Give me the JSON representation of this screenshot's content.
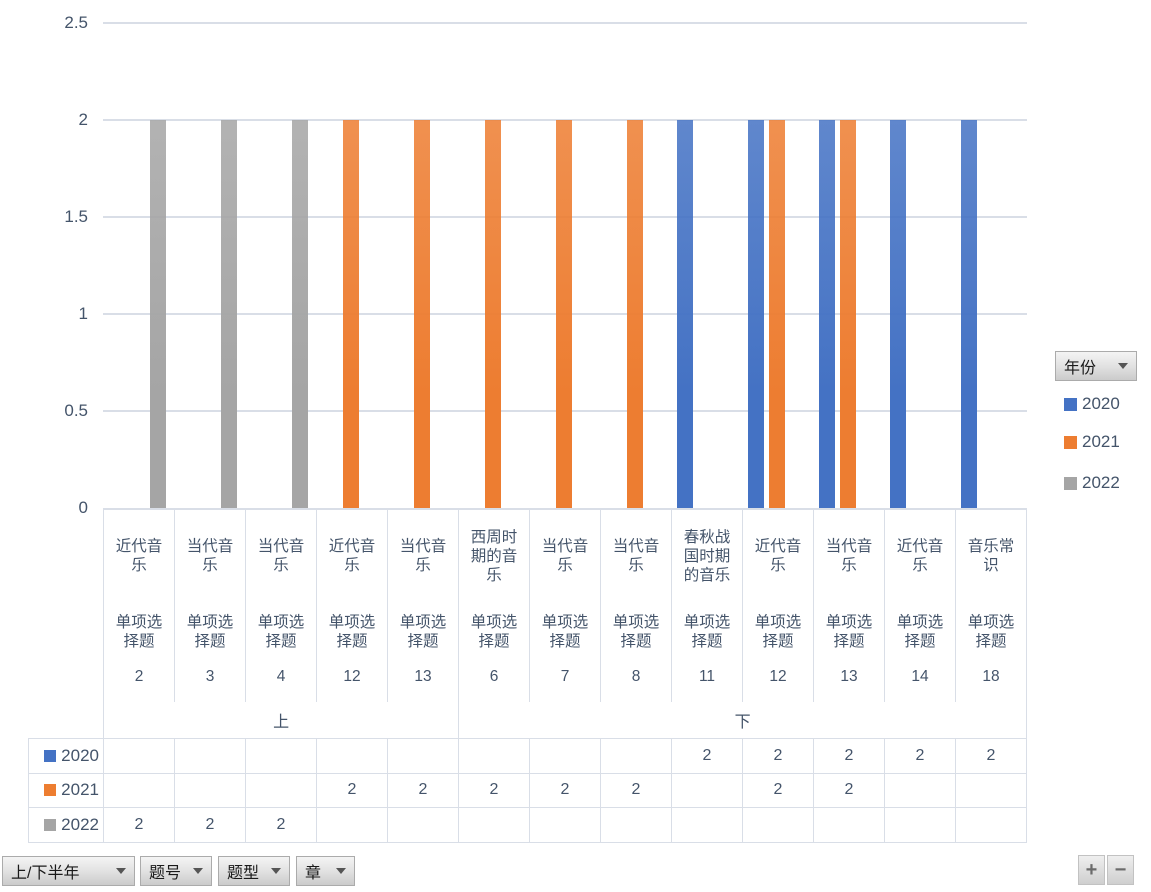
{
  "chart_data": {
    "type": "bar",
    "title": "",
    "xlabel": "",
    "ylabel": "",
    "ylim": [
      0,
      2.5
    ],
    "y_ticks": [
      2.5,
      2,
      1.5,
      1,
      0.5,
      0
    ],
    "grid": true,
    "legend_position": "right",
    "categories": [
      {
        "chapter": "近代音乐",
        "question_type": "单项选择题",
        "question_no": "2"
      },
      {
        "chapter": "当代音乐",
        "question_type": "单项选择题",
        "question_no": "3"
      },
      {
        "chapter": "当代音乐",
        "question_type": "单项选择题",
        "question_no": "4"
      },
      {
        "chapter": "近代音乐",
        "question_type": "单项选择题",
        "question_no": "12"
      },
      {
        "chapter": "当代音乐",
        "question_type": "单项选择题",
        "question_no": "13"
      },
      {
        "chapter": "西周时期的音乐",
        "question_type": "单项选择题",
        "question_no": "6"
      },
      {
        "chapter": "当代音乐",
        "question_type": "单项选择题",
        "question_no": "7"
      },
      {
        "chapter": "当代音乐",
        "question_type": "单项选择题",
        "question_no": "8"
      },
      {
        "chapter": "春秋战国时期的音乐",
        "question_type": "单项选择题",
        "question_no": "11"
      },
      {
        "chapter": "近代音乐",
        "question_type": "单项选择题",
        "question_no": "12"
      },
      {
        "chapter": "当代音乐",
        "question_type": "单项选择题",
        "question_no": "13"
      },
      {
        "chapter": "近代音乐",
        "question_type": "单项选择题",
        "question_no": "14"
      },
      {
        "chapter": "音乐常识",
        "question_type": "单项选择题",
        "question_no": "18"
      }
    ],
    "groups": [
      {
        "label": "上",
        "span": 5
      },
      {
        "label": "下",
        "span": 8
      }
    ],
    "series": [
      {
        "name": "2020",
        "color": "#4472C4",
        "values": [
          null,
          null,
          null,
          null,
          null,
          null,
          null,
          null,
          2,
          2,
          2,
          2,
          2
        ]
      },
      {
        "name": "2021",
        "color": "#ED7D31",
        "values": [
          null,
          null,
          null,
          2,
          2,
          2,
          2,
          2,
          null,
          2,
          2,
          null,
          null
        ]
      },
      {
        "name": "2022",
        "color": "#A5A5A5",
        "values": [
          2,
          2,
          2,
          null,
          null,
          null,
          null,
          null,
          null,
          null,
          null,
          null,
          null
        ]
      }
    ]
  },
  "legend": {
    "field_label": "年份",
    "items": [
      {
        "label": "2020",
        "color": "#4472C4"
      },
      {
        "label": "2021",
        "color": "#ED7D31"
      },
      {
        "label": "2022",
        "color": "#A5A5A5"
      }
    ]
  },
  "data_table": {
    "rows": [
      {
        "label": "2020",
        "color": "#4472C4",
        "cells": [
          "",
          "",
          "",
          "",
          "",
          "",
          "",
          "",
          "2",
          "2",
          "2",
          "2",
          "2"
        ]
      },
      {
        "label": "2021",
        "color": "#ED7D31",
        "cells": [
          "",
          "",
          "",
          "2",
          "2",
          "2",
          "2",
          "2",
          "",
          "2",
          "2",
          "",
          ""
        ]
      },
      {
        "label": "2022",
        "color": "#A5A5A5",
        "cells": [
          "2",
          "2",
          "2",
          "",
          "",
          "",
          "",
          "",
          "",
          "",
          "",
          "",
          ""
        ]
      }
    ]
  },
  "filter_buttons": [
    {
      "label": "上/下半年"
    },
    {
      "label": "题号"
    },
    {
      "label": "题型"
    },
    {
      "label": "章"
    }
  ],
  "zoom_buttons": {
    "plus": "+",
    "minus": "−"
  }
}
